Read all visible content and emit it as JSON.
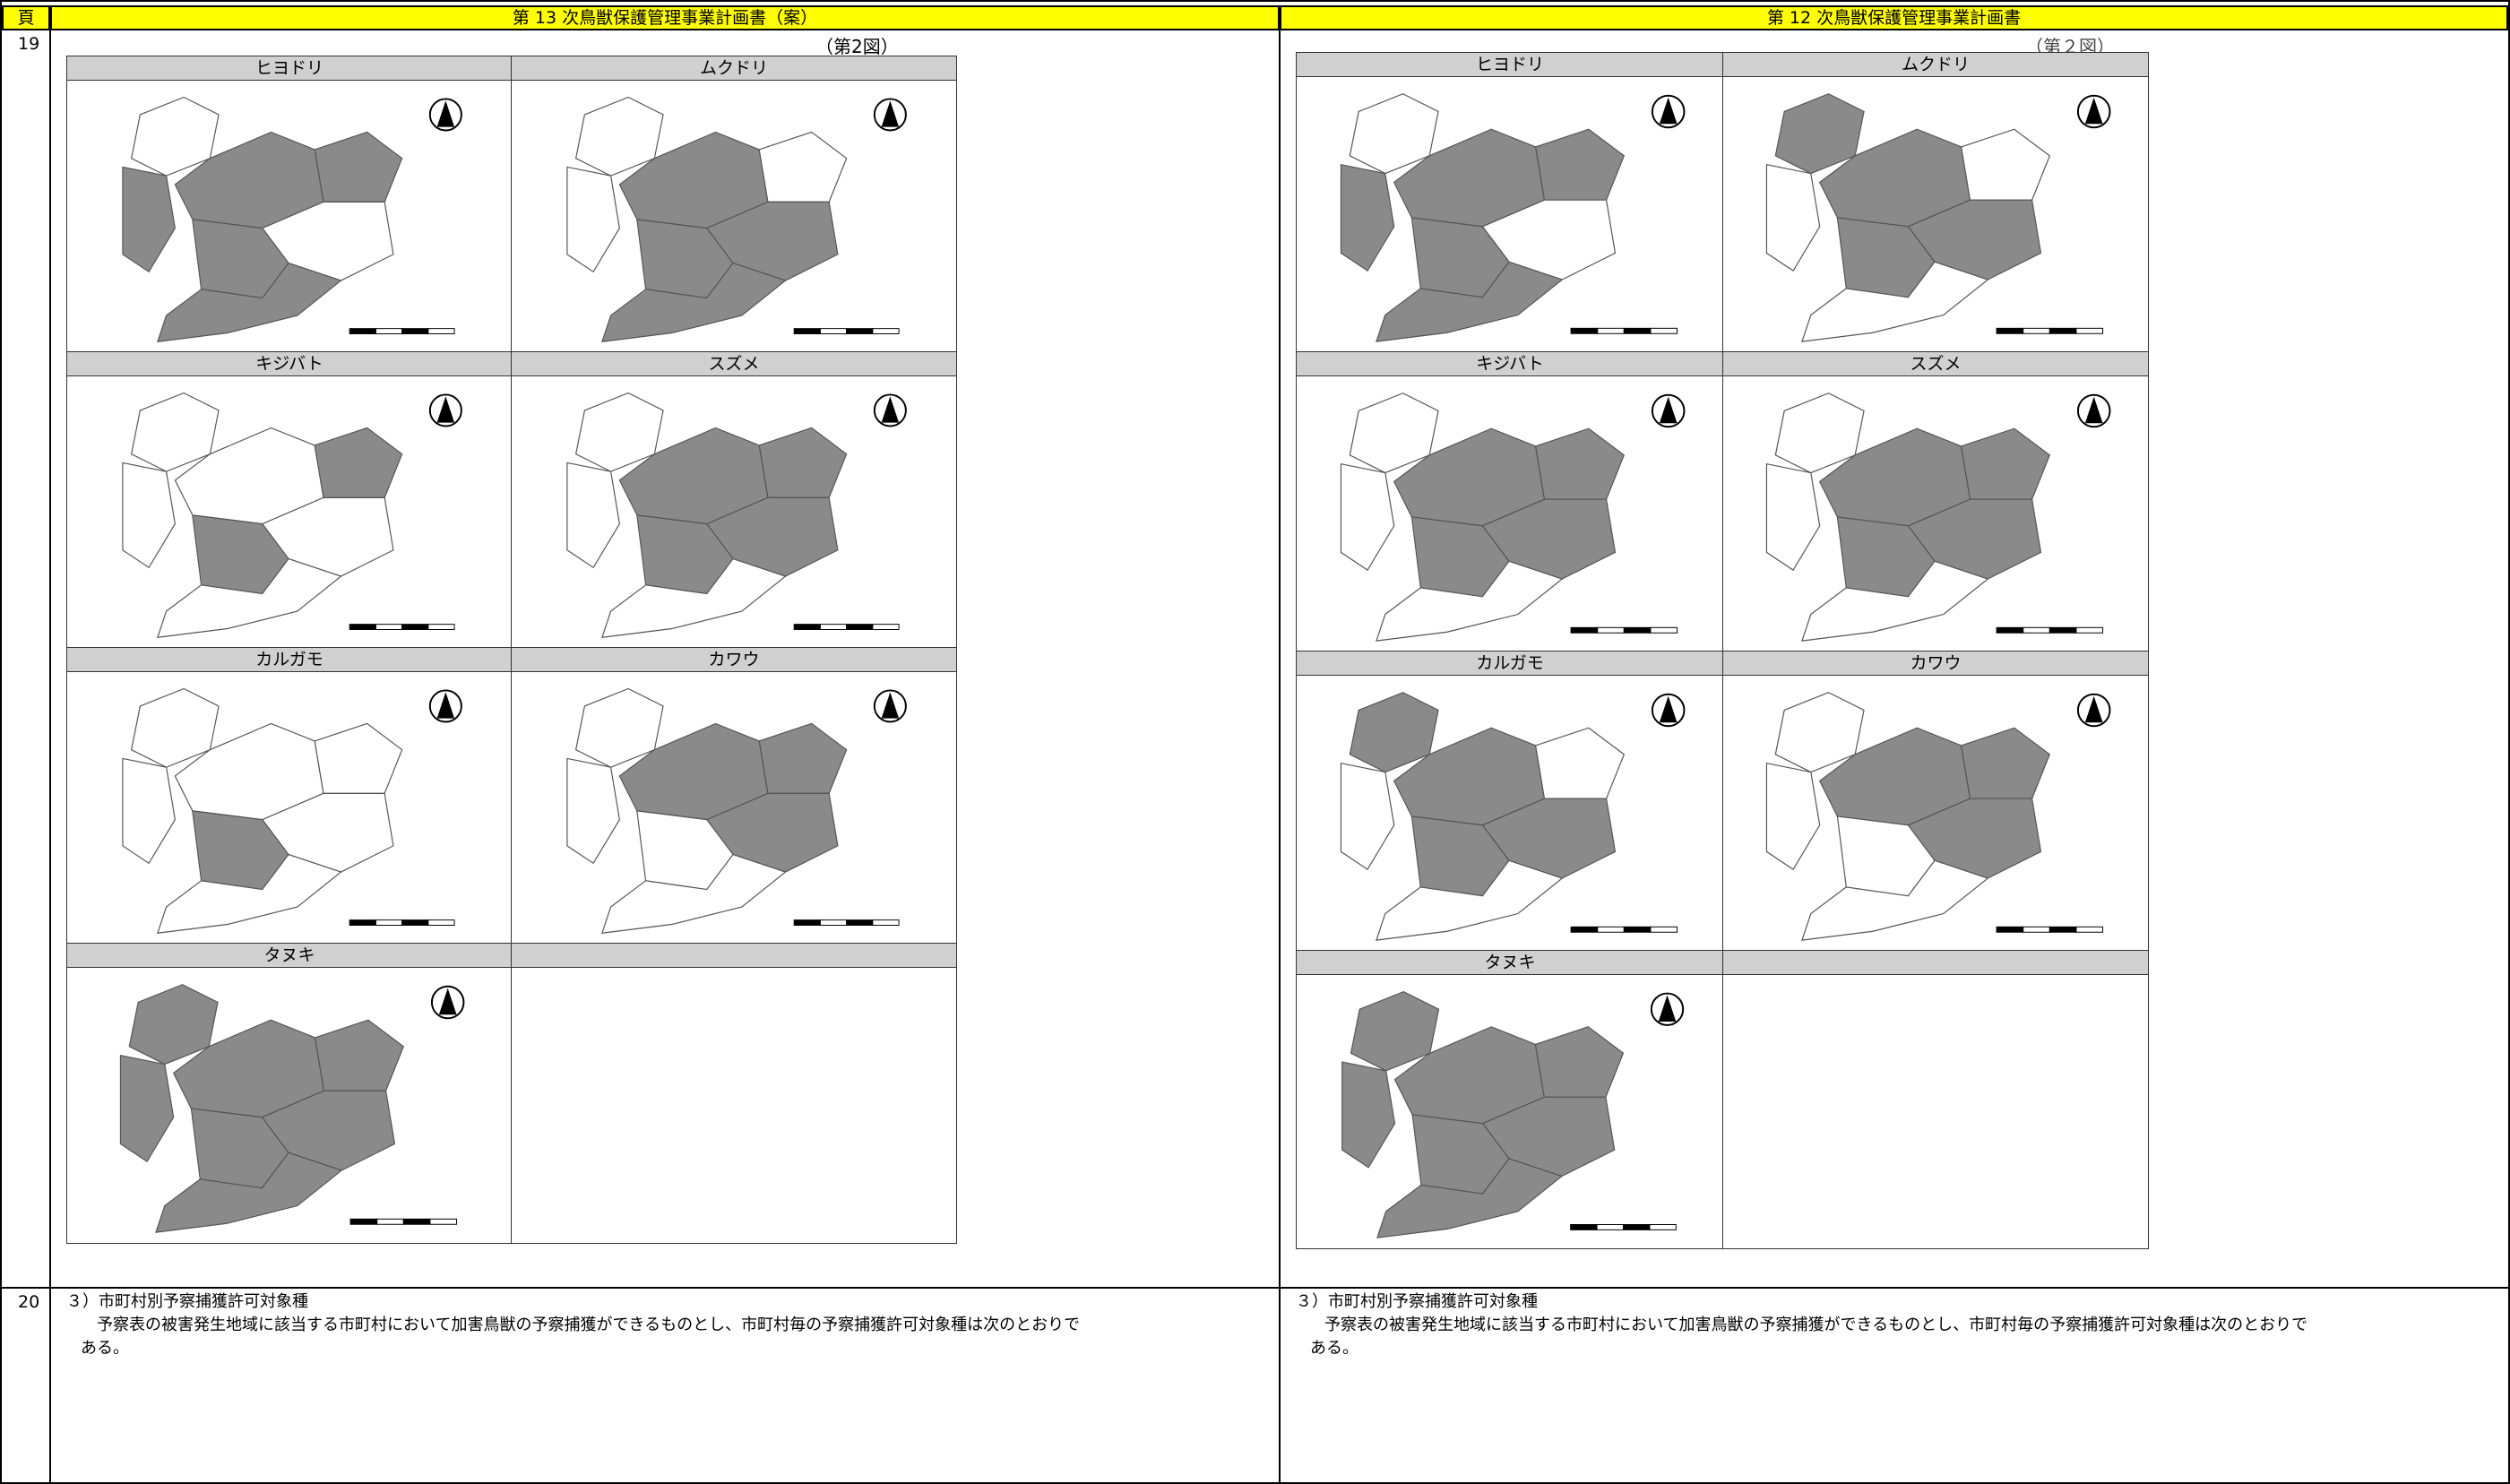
{
  "header": {
    "page_col": "頁",
    "left_title": "第 13 次鳥獣保護管理事業計画書（案）",
    "right_title": "第 12 次鳥獣保護管理事業計画書"
  },
  "rows": {
    "row1": "19",
    "row2": "20"
  },
  "left": {
    "figure_caption": "（第2図）",
    "maps": [
      {
        "name": "ヒヨドリ",
        "fill": "west-central"
      },
      {
        "name": "ムクドリ",
        "fill": "central-south"
      },
      {
        "name": "キジバト",
        "fill": "scattered"
      },
      {
        "name": "スズメ",
        "fill": "central-east"
      },
      {
        "name": "カルガモ",
        "fill": "small-central"
      },
      {
        "name": "カワウ",
        "fill": "east"
      },
      {
        "name": "タヌキ",
        "fill": "most"
      }
    ]
  },
  "right": {
    "figure_caption": "（第２図）",
    "maps": [
      {
        "name": "ヒヨドリ",
        "fill": "west-central"
      },
      {
        "name": "ムクドリ",
        "fill": "central"
      },
      {
        "name": "キジバト",
        "fill": "central-east"
      },
      {
        "name": "スズメ",
        "fill": "central-east"
      },
      {
        "name": "カルガモ",
        "fill": "central"
      },
      {
        "name": "カワウ",
        "fill": "east"
      },
      {
        "name": "タヌキ",
        "fill": "most"
      }
    ]
  },
  "section": {
    "heading": "３）市町村別予察捕獲許可対象種",
    "body_line1": "予察表の被害発生地域に該当する市町村において加害鳥獣の予察捕獲ができるものとし、市町村毎の予察捕獲許可対象種は次のとおりで",
    "body_line2": "ある。"
  },
  "colors": {
    "header_bg": "#ffff00",
    "label_bg": "#d0d0d0",
    "map_fill": "#8a8a8a"
  }
}
